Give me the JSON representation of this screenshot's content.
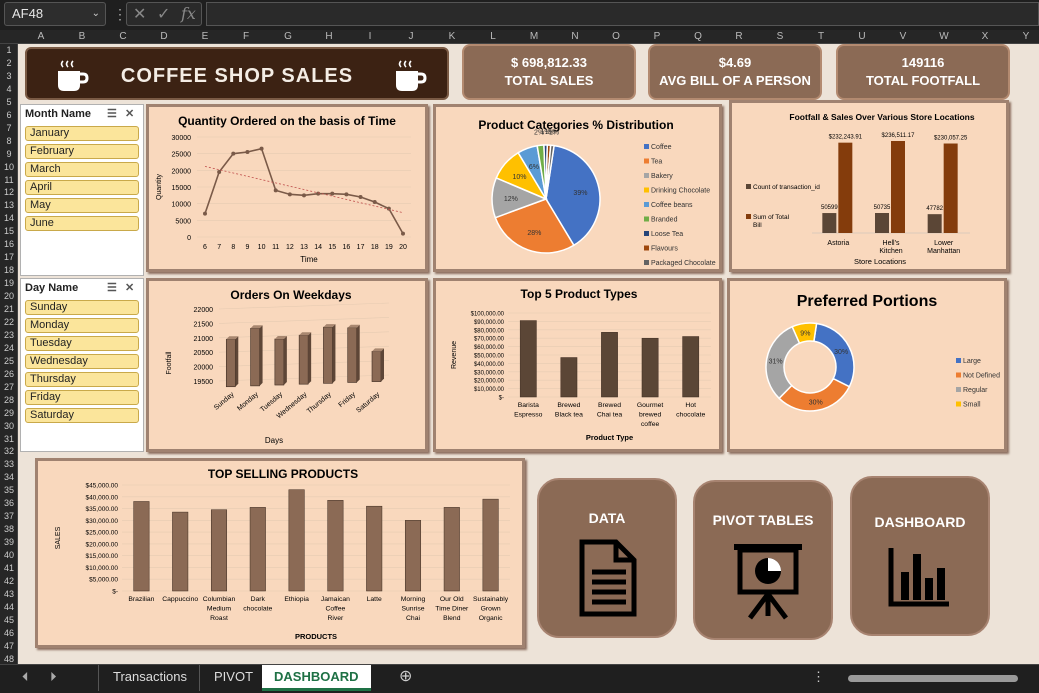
{
  "excel": {
    "name_box": "AF48",
    "columns": [
      "A",
      "B",
      "C",
      "D",
      "E",
      "F",
      "G",
      "H",
      "I",
      "J",
      "K",
      "L",
      "M",
      "N",
      "O",
      "P",
      "Q",
      "R",
      "S",
      "T",
      "U",
      "V",
      "W",
      "X",
      "Y"
    ],
    "rows": [
      "1",
      "2",
      "3",
      "4",
      "5",
      "6",
      "7",
      "8",
      "9",
      "10",
      "11",
      "12",
      "13",
      "14",
      "15",
      "16",
      "17",
      "18",
      "19",
      "20",
      "21",
      "22",
      "23",
      "24",
      "25",
      "26",
      "27",
      "28",
      "29",
      "30",
      "31",
      "32",
      "33",
      "34",
      "35",
      "36",
      "37",
      "38",
      "39",
      "40",
      "41",
      "42",
      "43",
      "44",
      "45",
      "46",
      "47",
      "48"
    ]
  },
  "banner": {
    "title": "COFFEE SHOP SALES"
  },
  "kpis": [
    {
      "value": "$ 698,812.33",
      "label": "TOTAL SALES"
    },
    {
      "value": "$4.69",
      "label": "AVG BILL OF A PERSON"
    },
    {
      "value": "149116",
      "label": "TOTAL FOOTFALL"
    }
  ],
  "slicers": {
    "month": {
      "title": "Month Name",
      "items": [
        "January",
        "February",
        "March",
        "April",
        "May",
        "June"
      ]
    },
    "day": {
      "title": "Day Name",
      "items": [
        "Sunday",
        "Monday",
        "Tuesday",
        "Wednesday",
        "Thursday",
        "Friday",
        "Saturday"
      ]
    }
  },
  "nav": {
    "data": "DATA",
    "pivot": "PIVOT TABLES",
    "dashboard": "DASHBOARD"
  },
  "sheets": {
    "tabs": [
      "Transactions",
      "PIVOT",
      "DASHBOARD"
    ],
    "active": "DASHBOARD"
  },
  "chart_data": [
    {
      "id": "qty",
      "type": "line",
      "title": "Quantity Ordered on the basis of Time",
      "xlabel": "Time",
      "ylabel": "Quantity",
      "x": [
        "6",
        "7",
        "8",
        "9",
        "10",
        "11",
        "12",
        "13",
        "14",
        "15",
        "16",
        "17",
        "18",
        "19",
        "20"
      ],
      "values": [
        7000,
        19500,
        25000,
        25500,
        26500,
        14000,
        12800,
        12500,
        13000,
        13000,
        12800,
        12000,
        10500,
        8500,
        1000
      ],
      "ylim": [
        0,
        30000
      ],
      "yticks": [
        "0",
        "5000",
        "10000",
        "15000",
        "20000",
        "25000",
        "30000"
      ],
      "trendline": true,
      "color": "#7a5a48"
    },
    {
      "id": "categories",
      "type": "pie",
      "title": "Product Categories % Distribution",
      "categories": [
        "Coffee",
        "Tea",
        "Bakery",
        "Drinking Chocolate",
        "Coffee beans",
        "Branded",
        "Loose Tea",
        "Flavours",
        "Packaged Chocolate"
      ],
      "values": [
        39,
        28,
        12,
        10,
        6,
        2,
        1,
        1,
        1
      ],
      "labels": [
        "39%",
        "28%",
        "12%",
        "10%",
        "6%",
        "2%",
        "1%",
        "1%",
        "1%"
      ],
      "colors": [
        "#4472c4",
        "#ed7d31",
        "#a5a5a5",
        "#ffc000",
        "#5b9bd5",
        "#70ad47",
        "#264478",
        "#9e480e",
        "#636363"
      ]
    },
    {
      "id": "stores",
      "type": "bar",
      "title": "Footfall & Sales Over Various Store Locations",
      "xlabel": "Store Locations",
      "categories": [
        "Astoria",
        "Hell's Kitchen",
        "Lower Manhattan"
      ],
      "series": [
        {
          "name": "Count of transaction_id",
          "values": [
            50599,
            50735,
            47782
          ],
          "labels": [
            "50599",
            "50735",
            "47782"
          ],
          "color": "#5b4636"
        },
        {
          "name": "Sum of Total Bill",
          "values": [
            232243.91,
            236511.17,
            230057.25
          ],
          "labels": [
            "$232,243.91",
            "$236,511.17",
            "$230,057.25"
          ],
          "color": "#843c0c"
        }
      ]
    },
    {
      "id": "weekdays",
      "type": "bar",
      "title": "Orders On Weekdays",
      "xlabel": "Days",
      "ylabel": "Footfall",
      "categories": [
        "Sunday",
        "Monday",
        "Tuesday",
        "Wednesday",
        "Thursday",
        "Friday",
        "Saturday"
      ],
      "values": [
        21150,
        21500,
        21100,
        21200,
        21450,
        21400,
        20550
      ],
      "ylim": [
        19500,
        22000
      ],
      "yticks": [
        "19500",
        "20000",
        "20500",
        "21000",
        "21500",
        "22000"
      ],
      "color": "#8b6a55"
    },
    {
      "id": "top5",
      "type": "bar",
      "title": "Top 5 Product Types",
      "xlabel": "Product Type",
      "ylabel": "Revenue",
      "categories": [
        "Barista Espresso",
        "Brewed Black tea",
        "Brewed Chai tea",
        "Gourmet brewed coffee",
        "Hot chocolate"
      ],
      "values": [
        91000,
        47000,
        77000,
        70000,
        72000
      ],
      "ylim": [
        0,
        100000
      ],
      "yticks": [
        "$-",
        "$10,000.00",
        "$20,000.00",
        "$30,000.00",
        "$40,000.00",
        "$50,000.00",
        "$60,000.00",
        "$70,000.00",
        "$80,000.00",
        "$90,000.00",
        "$100,000.00"
      ],
      "color": "#5b4636"
    },
    {
      "id": "portions",
      "type": "pie",
      "title": "Preferred Portions",
      "categories": [
        "Large",
        "Not Defined",
        "Regular",
        "Small"
      ],
      "values": [
        30,
        30,
        31,
        9
      ],
      "labels": [
        "30%",
        "30%",
        "31%",
        "9%"
      ],
      "colors": [
        "#4472c4",
        "#ed7d31",
        "#a5a5a5",
        "#ffc000"
      ]
    },
    {
      "id": "topsell",
      "type": "bar",
      "title": "TOP SELLING PRODUCTS",
      "xlabel": "PRODUCTS",
      "ylabel": "SALES",
      "categories": [
        "Brazilian",
        "Cappuccino",
        "Columbian Medium Roast",
        "Dark chocolate",
        "Ethiopia",
        "Jamaican Coffee River",
        "Latte",
        "Morning Sunrise Chai",
        "Our Old Time Diner Blend",
        "Sustainably Grown Organic"
      ],
      "values": [
        38000,
        33500,
        34500,
        35500,
        43000,
        38500,
        36000,
        30000,
        35500,
        39000
      ],
      "ylim": [
        0,
        45000
      ],
      "yticks": [
        "$-",
        "$5,000.00",
        "$10,000.00",
        "$15,000.00",
        "$20,000.00",
        "$25,000.00",
        "$30,000.00",
        "$35,000.00",
        "$40,000.00",
        "$45,000.00"
      ],
      "color": "#8b6a55"
    }
  ]
}
